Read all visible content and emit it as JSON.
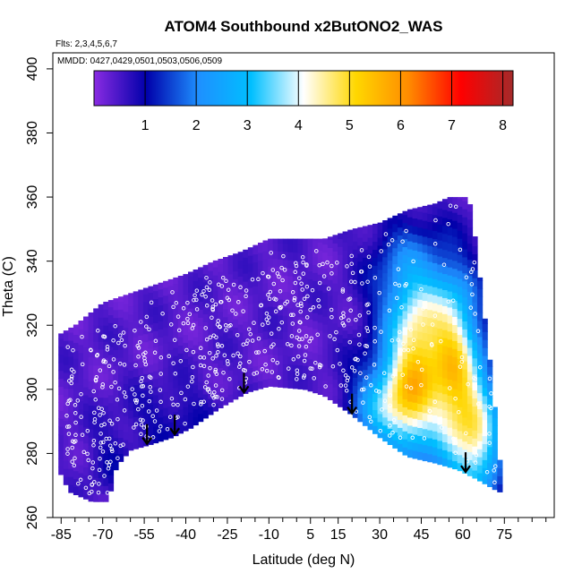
{
  "chart_data": {
    "type": "heatmap",
    "title": "ATOM4 Southbound x2ButONO2_WAS",
    "flights_label": "Flts: 2,3,4,5,6,7",
    "mmdd_label": "MMDD: 0427,0429,0501,0503,0506,0509",
    "xlabel": "Latitude (deg N)",
    "ylabel": "Theta (C)",
    "xlim": [
      -88,
      93
    ],
    "ylim": [
      260,
      405
    ],
    "x_ticks": [
      -85,
      -70,
      -55,
      -40,
      -25,
      -10,
      5,
      15,
      30,
      45,
      60,
      75
    ],
    "x_tick_labels": [
      "-85",
      "-70",
      "-55",
      "-40",
      "-25",
      "-10",
      "5",
      "15",
      "30",
      "45",
      "60",
      "75"
    ],
    "y_ticks": [
      260,
      280,
      300,
      320,
      340,
      360,
      380,
      400
    ],
    "y_tick_labels": [
      "260",
      "280",
      "300",
      "320",
      "340",
      "360",
      "380",
      "400"
    ],
    "colorbar": {
      "range": [
        0,
        8.2
      ],
      "ticks": [
        1,
        2,
        3,
        4,
        5,
        6,
        7,
        8
      ],
      "tick_labels": [
        "1",
        "2",
        "3",
        "4",
        "5",
        "6",
        "7",
        "8"
      ],
      "colors": [
        "#8a2be2",
        "#0000aa",
        "#1e90ff",
        "#00bfff",
        "#ffffff",
        "#ffd700",
        "#ff8c00",
        "#ff0000",
        "#a52a2a"
      ]
    },
    "field": {
      "description": "color-filled curtain of x2ButONO2 mixing ratio vs latitude and theta",
      "top_boundary": [
        [
          -86,
          317
        ],
        [
          -80,
          320
        ],
        [
          -70,
          327
        ],
        [
          -60,
          330
        ],
        [
          -50,
          333
        ],
        [
          -40,
          336
        ],
        [
          -30,
          340
        ],
        [
          -20,
          343
        ],
        [
          -10,
          347
        ],
        [
          0,
          347
        ],
        [
          10,
          347
        ],
        [
          20,
          350
        ],
        [
          30,
          352
        ],
        [
          40,
          356
        ],
        [
          50,
          358
        ],
        [
          55,
          360
        ],
        [
          61,
          360
        ],
        [
          63,
          357
        ],
        [
          71,
          300
        ],
        [
          73,
          278
        ]
      ],
      "bottom_boundary": [
        [
          73,
          268
        ],
        [
          65,
          272
        ],
        [
          58,
          275
        ],
        [
          50,
          277
        ],
        [
          40,
          279
        ],
        [
          30,
          285
        ],
        [
          20,
          292
        ],
        [
          10,
          298
        ],
        [
          3,
          300
        ],
        [
          -10,
          301
        ],
        [
          -18,
          299
        ],
        [
          -28,
          294
        ],
        [
          -38,
          288
        ],
        [
          -45,
          285
        ],
        [
          -52,
          283
        ],
        [
          -60,
          281
        ],
        [
          -65,
          276
        ],
        [
          -68,
          265
        ],
        [
          -74,
          265
        ],
        [
          -82,
          268
        ],
        [
          -86,
          275
        ]
      ],
      "background_level": 0.4,
      "enhancements": [
        {
          "x": 43,
          "y": 305,
          "sx": 7,
          "sy": 18,
          "value": 3.4
        },
        {
          "x": 57,
          "y": 303,
          "sx": 6,
          "sy": 20,
          "value": 3.6
        },
        {
          "x": 33,
          "y": 295,
          "sx": 9,
          "sy": 10,
          "value": 2.6
        },
        {
          "x": 66,
          "y": 285,
          "sx": 6,
          "sy": 15,
          "value": 3.2
        },
        {
          "x": 48,
          "y": 322,
          "sx": 12,
          "sy": 14,
          "value": 1.4
        },
        {
          "x": 38,
          "y": 338,
          "sx": 9,
          "sy": 12,
          "value": 0.9
        },
        {
          "x": -44,
          "y": 290,
          "sx": 14,
          "sy": 8,
          "value": 0.55
        },
        {
          "x": -68,
          "y": 277,
          "sx": 6,
          "sy": 7,
          "value": 0.45
        }
      ]
    },
    "arrows_x": [
      -54,
      -44,
      -19,
      20,
      61
    ],
    "arrow_color": "#000000",
    "point_marker_color": "#ffffff"
  }
}
